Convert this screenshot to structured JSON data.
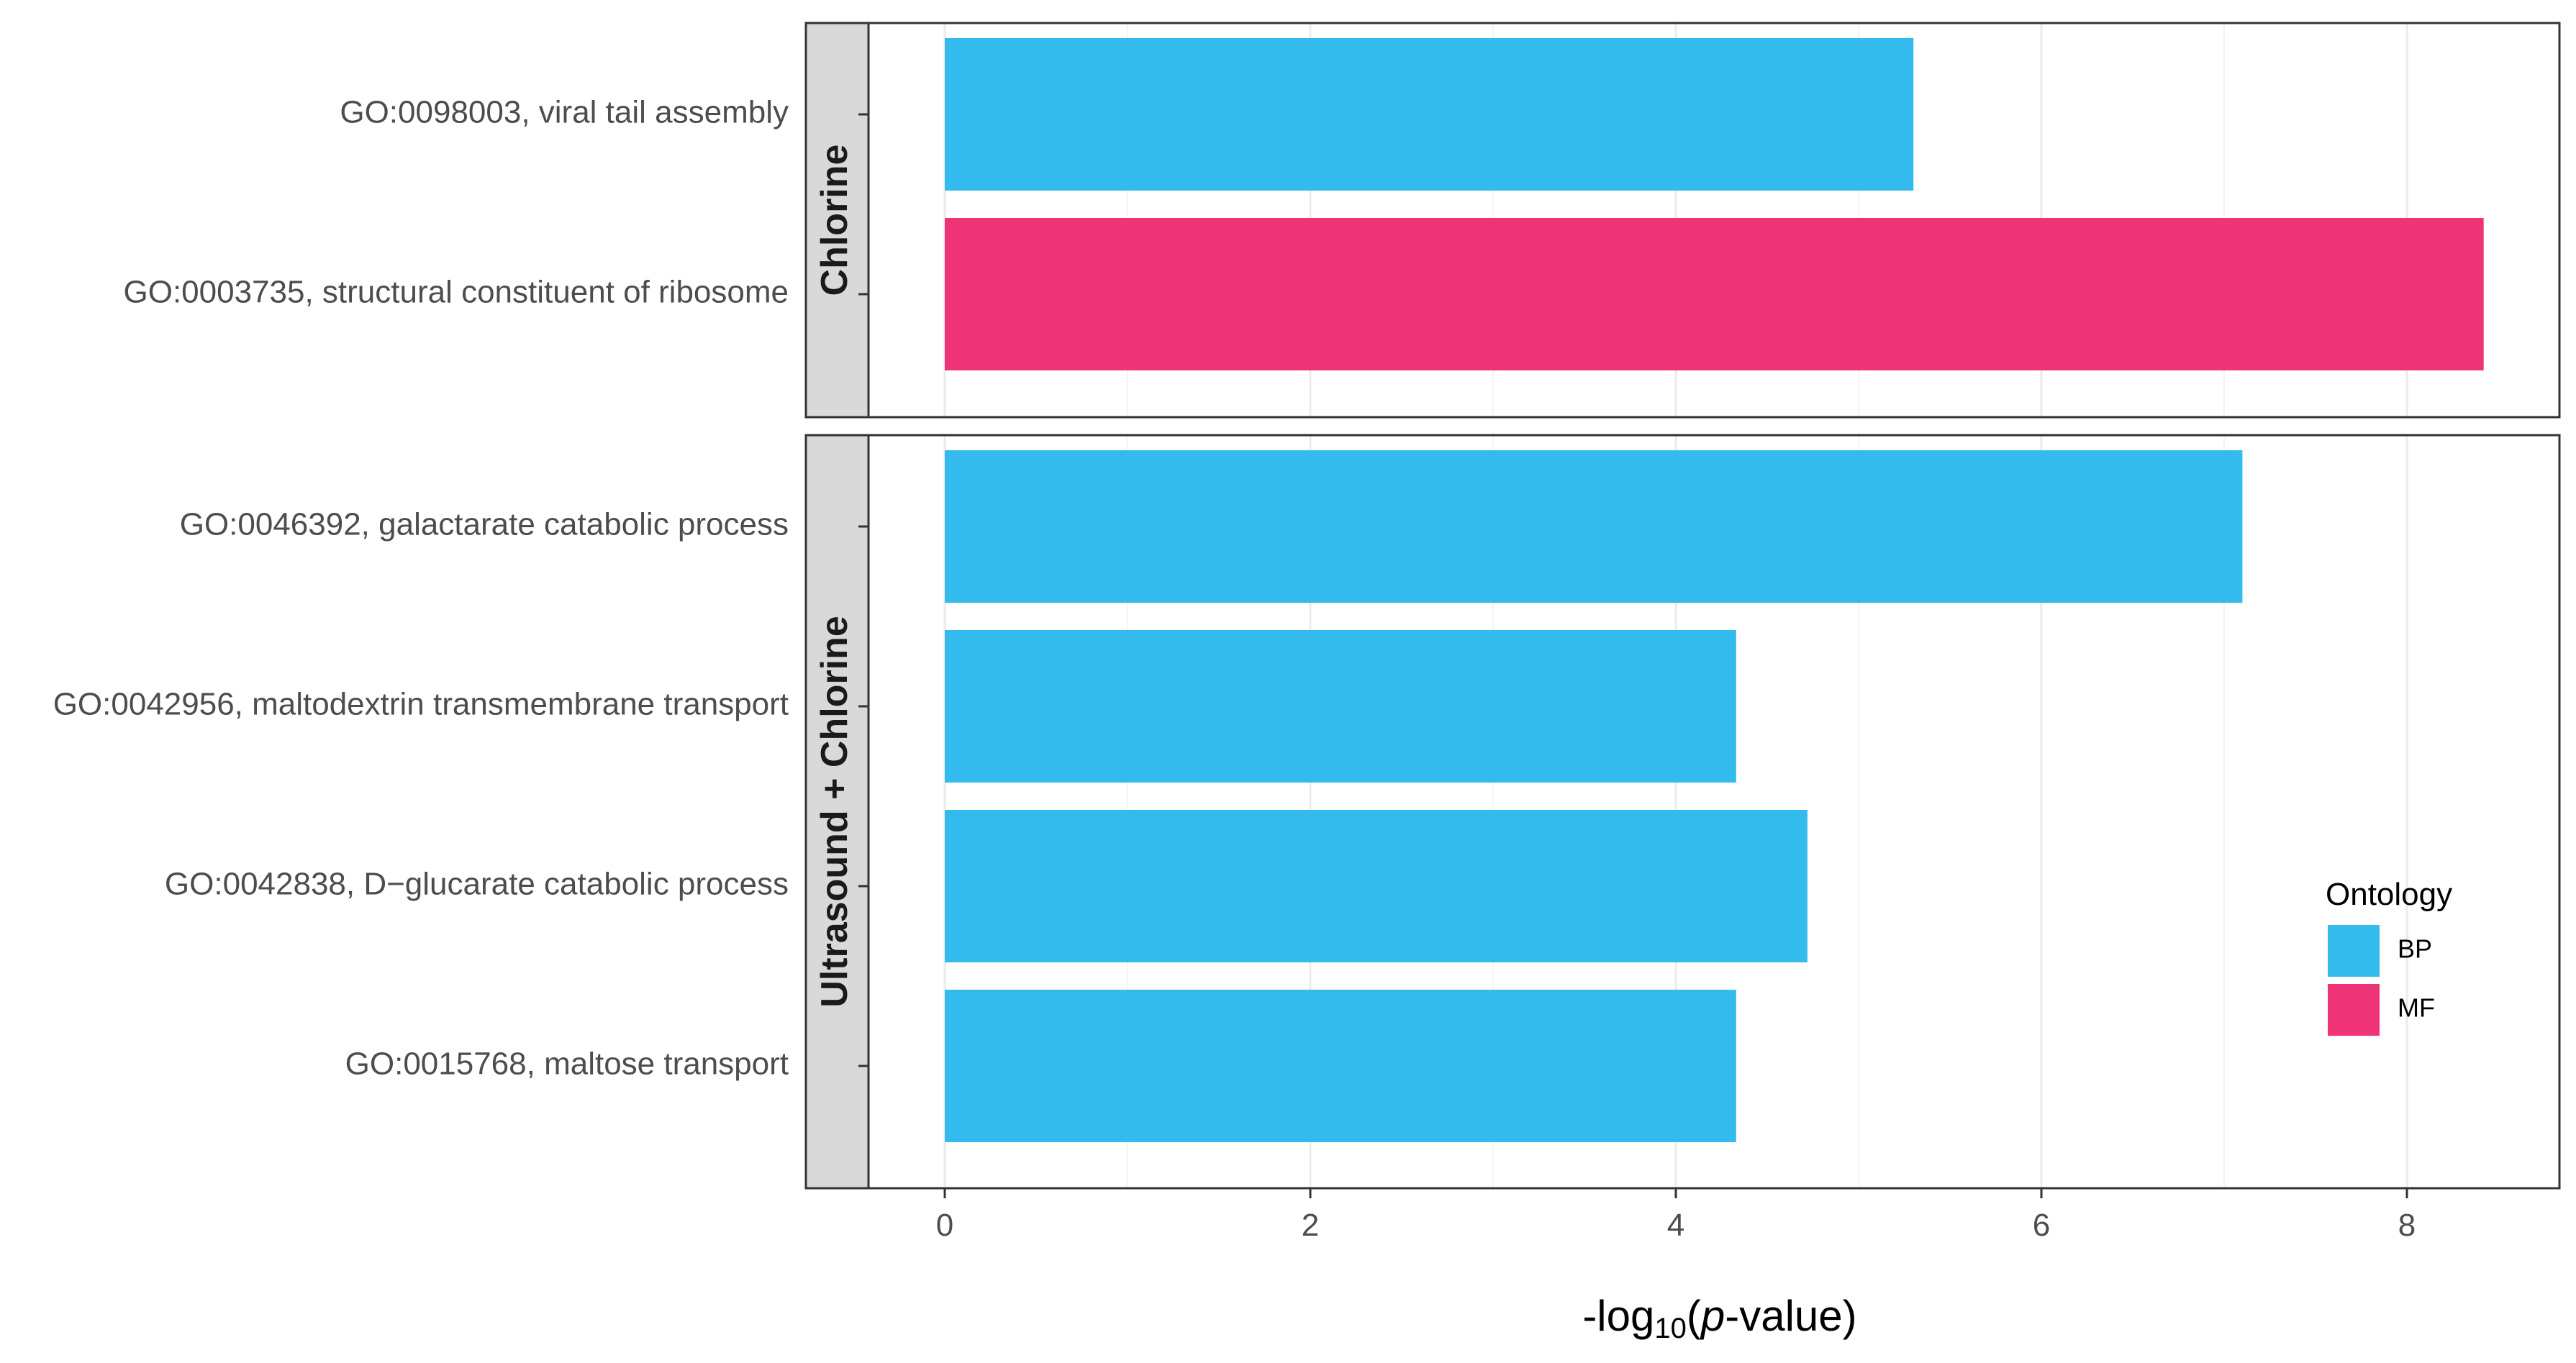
{
  "chart_data": {
    "type": "bar",
    "orientation": "horizontal",
    "xlabel_parts": {
      "pre": "-log",
      "sub": "10",
      "open": "(",
      "ital": "p",
      "post": "-value)"
    },
    "xlim": [
      -0.4,
      8.8
    ],
    "xticks": [
      "0",
      "2",
      "4",
      "6",
      "8"
    ],
    "xtick_values": [
      0,
      2,
      4,
      6,
      8
    ],
    "grid": true,
    "legend": {
      "title": "Ontology",
      "position": "right",
      "items": [
        {
          "label": "BP",
          "color": "#33BBEE"
        },
        {
          "label": "MF",
          "color": "#EE3377"
        }
      ]
    },
    "facets": [
      {
        "label": "Chlorine",
        "bars": [
          {
            "category": "GO:0098003, viral tail assembly",
            "value": 5.3,
            "ontology": "BP"
          },
          {
            "category": "GO:0003735, structural constituent of ribosome",
            "value": 8.42,
            "ontology": "MF"
          }
        ]
      },
      {
        "label": "Ultrasound + Chlorine",
        "bars": [
          {
            "category": "GO:0046392, galactarate catabolic process",
            "value": 7.1,
            "ontology": "BP"
          },
          {
            "category": "GO:0042956, maltodextrin transmembrane transport",
            "value": 4.33,
            "ontology": "BP"
          },
          {
            "category": "GO:0042838, D−glucarate catabolic process",
            "value": 4.72,
            "ontology": "BP"
          },
          {
            "category": "GO:0015768, maltose transport",
            "value": 4.33,
            "ontology": "BP"
          }
        ]
      }
    ]
  }
}
